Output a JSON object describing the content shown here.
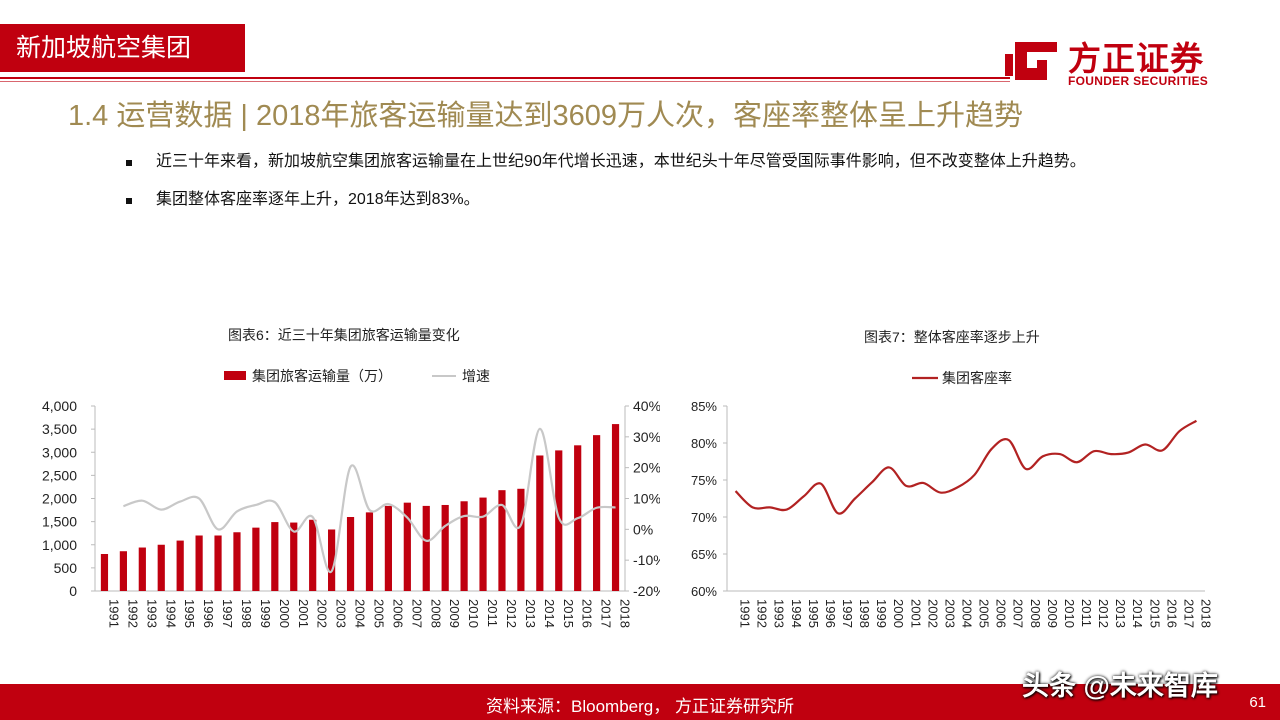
{
  "header": {
    "title": "新加坡航空集团"
  },
  "logo": {
    "cn": "方正证券",
    "en": "FOUNDER SECURITIES",
    "brand_color": "#c0000f"
  },
  "slide": {
    "title": "1.4 运营数据 | 2018年旅客运输量达到3609万人次，客座率整体呈上升趋势"
  },
  "bullets": [
    "近三十年来看，新加坡航空集团旅客运输量在上世纪90年代增长迅速，本世纪头十年尽管受国际事件影响，但不改变整体上升趋势。",
    "集团整体客座率逐年上升，2018年达到83%。"
  ],
  "footer": {
    "source": "资料来源：Bloomberg， 方正证券研究所",
    "page": "61",
    "watermark": "头条 @未来智库"
  },
  "chart_data": [
    {
      "type": "bar",
      "title": "图表6：近三十年集团旅客运输量变化",
      "categories": [
        "1991",
        "1992",
        "1993",
        "1994",
        "1995",
        "1996",
        "1997",
        "1998",
        "1999",
        "2000",
        "2001",
        "2002",
        "2003",
        "2004",
        "2005",
        "2006",
        "2007",
        "2008",
        "2009",
        "2010",
        "2011",
        "2012",
        "2013",
        "2014",
        "2015",
        "2016",
        "2017",
        "2018"
      ],
      "series": [
        {
          "name": "集团旅客运输量（万）",
          "type": "bar",
          "axis": "left",
          "color": "#c0000f",
          "values": [
            800,
            860,
            940,
            1000,
            1090,
            1200,
            1200,
            1270,
            1370,
            1490,
            1480,
            1540,
            1330,
            1600,
            1700,
            1840,
            1910,
            1840,
            1860,
            1940,
            2020,
            2180,
            2210,
            2930,
            3040,
            3150,
            3370,
            3609
          ]
        },
        {
          "name": "增速",
          "type": "line",
          "axis": "right",
          "color": "#c8c8c8",
          "values": [
            null,
            0.075,
            0.093,
            0.064,
            0.09,
            0.1,
            0.0,
            0.058,
            0.079,
            0.088,
            -0.007,
            0.04,
            -0.136,
            0.203,
            0.063,
            0.082,
            0.038,
            -0.037,
            0.011,
            0.043,
            0.041,
            0.079,
            0.014,
            0.326,
            0.038,
            0.036,
            0.07,
            0.071
          ]
        }
      ],
      "yticks_left": [
        "4,000",
        "3,500",
        "3,000",
        "2,500",
        "2,000",
        "1,500",
        "1,000",
        "500",
        "0"
      ],
      "yticks_right": [
        "40%",
        "30%",
        "20%",
        "10%",
        "0%",
        "-10%",
        "-20%"
      ],
      "ylim_left": [
        0,
        4000
      ],
      "ylim_right": [
        -0.2,
        0.4
      ],
      "legend_position": "top"
    },
    {
      "type": "line",
      "title": "图表7：整体客座率逐步上升",
      "categories": [
        "1991",
        "1992",
        "1993",
        "1994",
        "1995",
        "1996",
        "1997",
        "1998",
        "1999",
        "2000",
        "2001",
        "2002",
        "2003",
        "2004",
        "2005",
        "2006",
        "2007",
        "2008",
        "2009",
        "2010",
        "2011",
        "2012",
        "2013",
        "2014",
        "2015",
        "2016",
        "2017",
        "2018"
      ],
      "series": [
        {
          "name": "集团客座率",
          "color": "#b22222",
          "values": [
            0.735,
            0.713,
            0.713,
            0.71,
            0.728,
            0.745,
            0.705,
            0.725,
            0.747,
            0.767,
            0.742,
            0.746,
            0.733,
            0.74,
            0.757,
            0.792,
            0.804,
            0.765,
            0.782,
            0.785,
            0.774,
            0.789,
            0.785,
            0.787,
            0.798,
            0.79,
            0.816,
            0.83
          ]
        }
      ],
      "yticks": [
        "85%",
        "80%",
        "75%",
        "70%",
        "65%",
        "60%"
      ],
      "ylim": [
        0.6,
        0.85
      ],
      "legend_position": "top"
    }
  ]
}
